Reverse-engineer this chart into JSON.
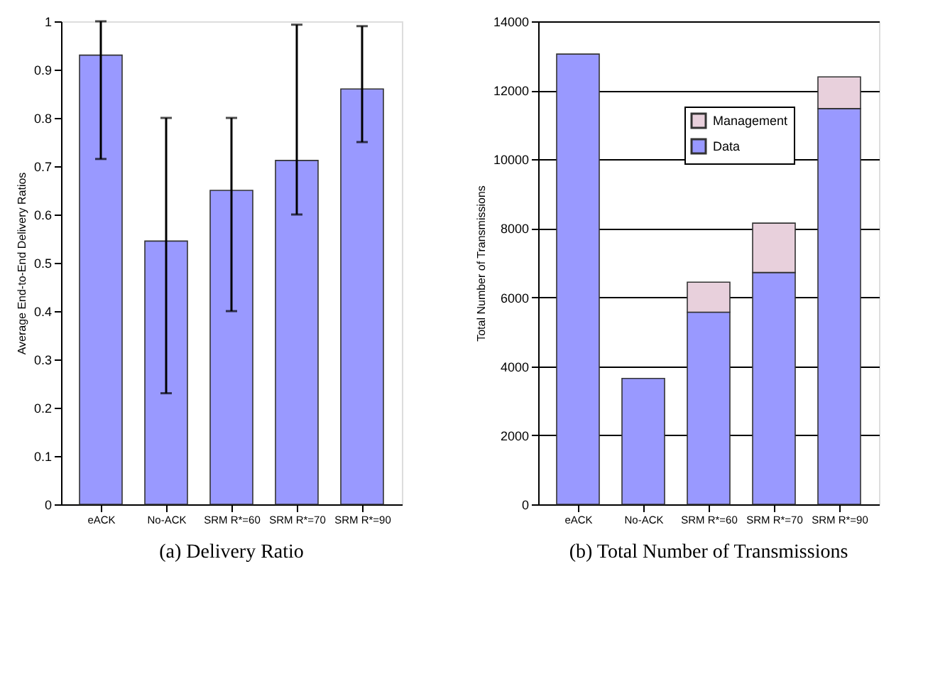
{
  "chart_data": [
    {
      "type": "bar",
      "title": "(a) Delivery Ratio",
      "ylabel": "Average End-to-End Delivery Ratios",
      "categories": [
        "eACK",
        "No-ACK",
        "SRM R*=60",
        "SRM R*=70",
        "SRM R*=90"
      ],
      "values": [
        0.93,
        0.545,
        0.65,
        0.712,
        0.86
      ],
      "color": "#9999ff",
      "errors": [
        [
          0.715,
          1.0
        ],
        [
          0.23,
          0.8
        ],
        [
          0.4,
          0.8
        ],
        [
          0.6,
          0.993
        ],
        [
          0.75,
          0.99
        ]
      ],
      "ylim": [
        0,
        1
      ],
      "yticks": [
        0,
        0.1,
        0.2,
        0.3,
        0.4,
        0.5,
        0.6,
        0.7,
        0.8,
        0.9,
        1
      ],
      "grid": false
    },
    {
      "type": "bar",
      "title": "(b) Total Number of Transmissions",
      "ylabel": "Total Number of Transmissions",
      "categories": [
        "eACK",
        "No-ACK",
        "SRM R*=60",
        "SRM R*=70",
        "SRM R*=90"
      ],
      "stacked": true,
      "series": [
        {
          "name": "Data",
          "color": "#9999ff",
          "values": [
            13050,
            3650,
            5570,
            6720,
            11470
          ]
        },
        {
          "name": "Management",
          "color": "#e8d0dc",
          "values": [
            null,
            null,
            870,
            1430,
            920
          ]
        }
      ],
      "ylim": [
        0,
        14000
      ],
      "yticks": [
        0,
        2000,
        4000,
        6000,
        8000,
        10000,
        12000,
        14000
      ],
      "grid": "y",
      "legend": "top right"
    }
  ]
}
